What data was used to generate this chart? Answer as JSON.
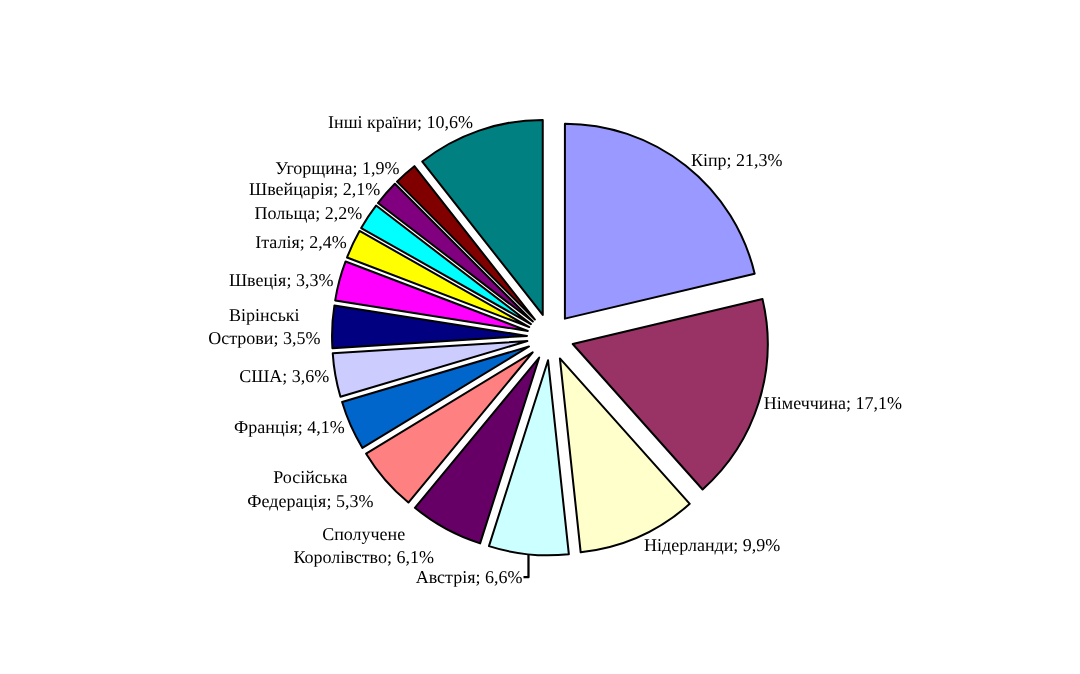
{
  "chart_data": {
    "type": "pie",
    "categories": [
      "Кіпр",
      "Німеччина",
      "Нідерланди",
      "Австрія",
      "Сполучене Королівство",
      "Російська Федерація",
      "Франція",
      "США",
      "Вірінські Острови",
      "Швеція",
      "Італія",
      "Польща",
      "Швейцарія",
      "Угорщина",
      "Інші країни"
    ],
    "values": [
      21.3,
      17.1,
      9.9,
      6.6,
      6.1,
      5.3,
      4.1,
      3.6,
      3.5,
      3.3,
      2.4,
      2.2,
      2.1,
      1.9,
      10.6
    ],
    "value_labels": [
      "21,3%",
      "17,1%",
      "9,9%",
      "6,6%",
      "6,1%",
      "5,3%",
      "4,1%",
      "3,6%",
      "3,5%",
      "3,3%",
      "2,4%",
      "2,2%",
      "2,1%",
      "1,9%",
      "10,6%"
    ],
    "colors": [
      "#9999ff",
      "#993366",
      "#ffffcc",
      "#ccffff",
      "#660066",
      "#ff8080",
      "#0066cc",
      "#ccccff",
      "#000080",
      "#ff00ff",
      "#ffff00",
      "#00ffff",
      "#800080",
      "#800000",
      "#008080"
    ],
    "legend": false
  }
}
